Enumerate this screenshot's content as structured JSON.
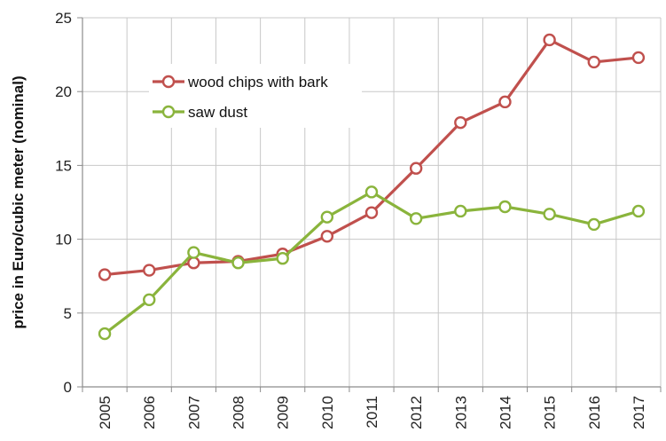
{
  "chart_data": {
    "type": "line",
    "title": "",
    "xlabel": "",
    "ylabel": "price in Euro/cubic meter (nominal)",
    "x": [
      "2005",
      "2006",
      "2007",
      "2008",
      "2009",
      "2010",
      "2011",
      "2012",
      "2013",
      "2014",
      "2015",
      "2016",
      "2017"
    ],
    "ylim": [
      0,
      25
    ],
    "yticks": [
      0,
      5,
      10,
      15,
      20,
      25
    ],
    "grid": true,
    "legend_position": "top-left",
    "series": [
      {
        "name": "wood chips with bark",
        "color": "#c0504d",
        "values": [
          7.6,
          7.9,
          8.4,
          8.5,
          9.0,
          10.2,
          11.8,
          14.8,
          17.9,
          19.3,
          23.5,
          22.0,
          22.3
        ]
      },
      {
        "name": "saw dust",
        "color": "#8ab43c",
        "values": [
          3.6,
          5.9,
          9.1,
          8.4,
          8.7,
          11.5,
          13.2,
          11.4,
          11.9,
          12.2,
          11.7,
          11.0,
          11.9
        ]
      }
    ]
  }
}
